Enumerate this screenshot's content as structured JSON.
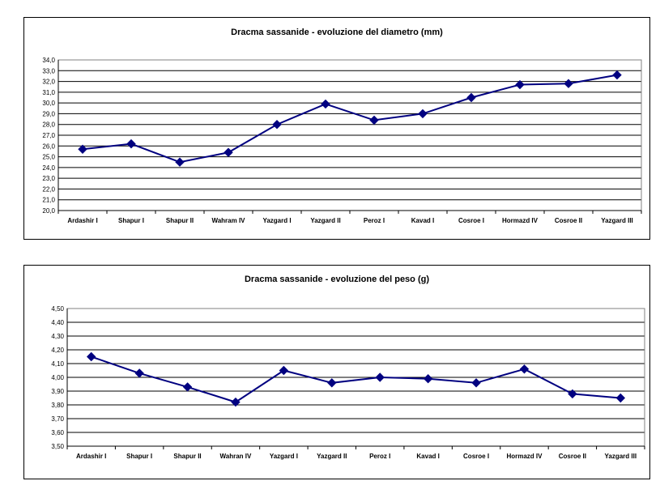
{
  "chart_data": [
    {
      "type": "line",
      "title": "Dracma sassanide - evoluzione del diametro (mm)",
      "categories": [
        "Ardashir I",
        "Shapur I",
        "Shapur II",
        "Wahram IV",
        "Yazgard I",
        "Yazgard II",
        "Peroz I",
        "Kavad I",
        "Cosroe I",
        "Hormazd IV",
        "Cosroe II",
        "Yazgard III"
      ],
      "series": [
        {
          "values": [
            25.7,
            26.2,
            24.5,
            25.4,
            28.0,
            29.9,
            28.4,
            29.0,
            30.5,
            31.7,
            31.8,
            32.6
          ]
        }
      ],
      "ylim": [
        20,
        34
      ],
      "ytick_step": 1,
      "ytick_labels": [
        "20,0",
        "21,0",
        "22,0",
        "23,0",
        "24,0",
        "25,0",
        "26,0",
        "27,0",
        "28,0",
        "29,0",
        "30,0",
        "31,0",
        "32,0",
        "33,0",
        "34,0"
      ],
      "grid": true,
      "line_color": "#000080"
    },
    {
      "type": "line",
      "title": "Dracma sassanide - evoluzione del peso (g)",
      "categories": [
        "Ardashir I",
        "Shapur I",
        "Shapur II",
        "Wahran IV",
        "Yazgard I",
        "Yazgard II",
        "Peroz I",
        "Kavad I",
        "Cosroe I",
        "Hormazd IV",
        "Cosroe II",
        "Yazgard III"
      ],
      "series": [
        {
          "values": [
            4.15,
            4.03,
            3.93,
            3.82,
            4.05,
            3.96,
            4.0,
            3.99,
            3.96,
            4.06,
            3.88,
            3.85
          ]
        }
      ],
      "ylim": [
        3.5,
        4.5
      ],
      "ytick_step": 0.1,
      "ytick_labels": [
        "3,50",
        "3,60",
        "3,70",
        "3,80",
        "3,90",
        "4,00",
        "4,10",
        "4,20",
        "4,30",
        "4,40",
        "4,50"
      ],
      "grid": true,
      "line_color": "#000080"
    }
  ]
}
